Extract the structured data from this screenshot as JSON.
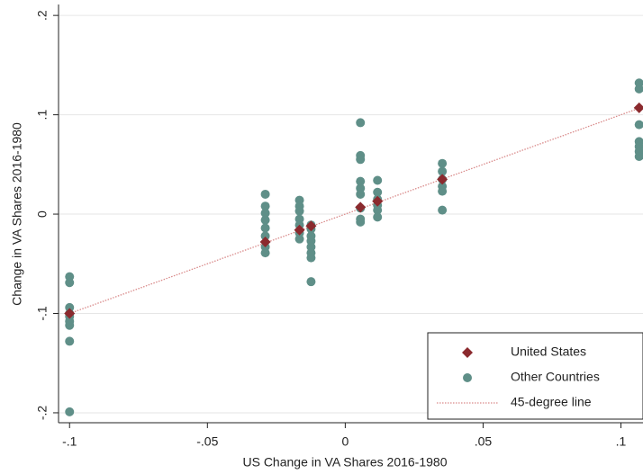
{
  "chart_data": {
    "type": "scatter",
    "x_label": "US Change in VA Shares 2016-1980",
    "y_label": "Change in VA Shares 2016-1980",
    "xlim": [
      -0.104,
      0.108
    ],
    "ylim": [
      -0.21,
      0.211
    ],
    "xticks": [
      {
        "value": -0.1,
        "label": "-.1"
      },
      {
        "value": -0.05,
        "label": "-.05"
      },
      0,
      {
        "value": 0.05,
        "label": ".05"
      },
      {
        "value": 0.1,
        "label": ".1"
      }
    ],
    "yticks": [
      {
        "value": -0.2,
        "label": "-.2"
      },
      {
        "value": -0.1,
        "label": "-.1"
      },
      0,
      {
        "value": 0.1,
        "label": ".1"
      },
      {
        "value": 0.2,
        "label": ".2"
      }
    ],
    "grid": true,
    "legend": "lower right",
    "series": [
      {
        "name": "United States",
        "type": "scatter",
        "marker": "diamond",
        "color": "#8b2a2e",
        "x": [
          -0.1,
          -0.029,
          -0.0166,
          -0.0124,
          0.0055,
          0.0117,
          0.0352,
          0.1066
        ],
        "values": [
          -0.1,
          -0.028,
          -0.016,
          -0.012,
          0.007,
          0.013,
          0.035,
          0.107
        ]
      },
      {
        "name": "Other Countries",
        "type": "scatter",
        "marker": "circle",
        "color": "#5f8f88",
        "x": [
          -0.1,
          -0.1,
          -0.1,
          -0.1,
          -0.1,
          -0.1,
          -0.1,
          -0.1,
          -0.1,
          -0.029,
          -0.029,
          -0.029,
          -0.029,
          -0.029,
          -0.029,
          -0.029,
          -0.029,
          -0.0166,
          -0.0166,
          -0.0166,
          -0.0166,
          -0.0166,
          -0.0166,
          -0.0166,
          -0.0124,
          -0.0124,
          -0.0124,
          -0.0124,
          -0.0124,
          -0.0124,
          -0.0124,
          -0.0124,
          0.0055,
          0.0055,
          0.0055,
          0.0055,
          0.0055,
          0.0055,
          0.0055,
          0.0055,
          0.0055,
          0.0117,
          0.0117,
          0.0117,
          0.0117,
          0.0117,
          0.0117,
          0.0352,
          0.0352,
          0.0352,
          0.0352,
          0.0352,
          0.0352,
          0.1066,
          0.1066,
          0.1066,
          0.1066,
          0.1066,
          0.1066,
          0.1066
        ],
        "values": [
          -0.063,
          -0.069,
          -0.094,
          -0.1,
          -0.103,
          -0.108,
          -0.112,
          -0.128,
          -0.199,
          0.02,
          0.008,
          0.001,
          -0.006,
          -0.014,
          -0.022,
          -0.033,
          -0.039,
          0.014,
          0.008,
          0.003,
          -0.005,
          -0.011,
          -0.019,
          -0.025,
          -0.011,
          -0.015,
          -0.022,
          -0.027,
          -0.033,
          -0.039,
          -0.044,
          -0.068,
          0.092,
          0.059,
          0.055,
          0.033,
          0.026,
          0.02,
          0.006,
          -0.005,
          -0.008,
          0.034,
          0.022,
          0.015,
          0.009,
          0.004,
          -0.003,
          0.051,
          0.043,
          0.035,
          0.028,
          0.023,
          0.004,
          0.132,
          0.126,
          0.09,
          0.073,
          0.068,
          0.063,
          0.058
        ]
      },
      {
        "name": "45-degree line",
        "type": "line",
        "style": "dotted",
        "color": "#d98a8a",
        "x": [
          -0.1,
          0.1066
        ],
        "values": [
          -0.1,
          0.1066
        ]
      }
    ]
  }
}
